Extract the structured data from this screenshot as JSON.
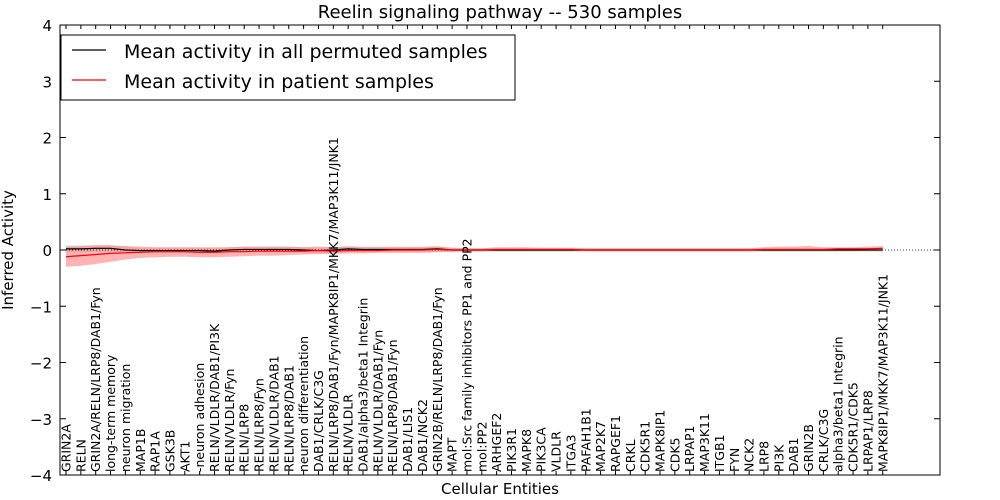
{
  "chart_data": {
    "type": "line",
    "title": "Reelin signaling pathway -- 530 samples",
    "xlabel": "Cellular Entities",
    "ylabel": "Inferred Activity",
    "ylim": [
      -4,
      4
    ],
    "yticks": [
      -4,
      -3,
      -2,
      -1,
      0,
      1,
      2,
      3,
      4
    ],
    "ytick_labels": [
      "−4",
      "−3",
      "−2",
      "−1",
      "0",
      "1",
      "2",
      "3",
      "4"
    ],
    "grid": false,
    "legend_position": "top-left",
    "categories": [
      "GRIN2A",
      "RELN",
      "GRIN2A/RELN/LRP8/DAB1/Fyn",
      "long-term memory",
      "neuron migration",
      "MAP1B",
      "RAP1A",
      "GSK3B",
      "AKT1",
      "-neuron adhesion",
      "RELN/VLDLR/DAB1/PI3K",
      "RELN/VLDLR/Fyn",
      "RELN/LRP8",
      "RELN/LRP8/Fyn",
      "RELN/VLDLR/DAB1",
      "RELN/LRP8/DAB1",
      "neuron differentiation",
      "DAB1/CRLK/C3G",
      "RELN/LRP8/DAB1/Fyn/MAPK8IP1/MKK7/MAP3K11/JNK1",
      "RELN/VLDLR",
      "DAB1/alpha3/beta1 Integrin",
      "RELN/VLDLR/DAB1/Fyn",
      "RELN/LRP8/DAB1/Fyn",
      "DAB1/LIS1",
      "DAB1/NCK2",
      "GRIN2B/RELN/LRP8/DAB1/Fyn",
      "MAPT",
      "mol:Src family inhibitors PP1 and PP2",
      "mol:PP2",
      "ARHGEF2",
      "PIK3R1",
      "MAPK8",
      "PIK3CA",
      "VLDLR",
      "ITGA3",
      "PAFAH1B1",
      "MAP2K7",
      "RAPGEF1",
      "CRKL",
      "CDK5R1",
      "MAPK8IP1",
      "CDK5",
      "LRPAP1",
      "MAP3K11",
      "ITGB1",
      "FYN",
      "NCK2",
      "LRP8",
      "PI3K",
      "DAB1",
      "GRIN2B",
      "CRLK/C3G",
      "alpha3/beta1 Integrin",
      "CDK5R1/CDK5",
      "LRPAP1/LRP8",
      "MAPK8IP1/MKK7/MAP3K11/JNK1"
    ],
    "series": [
      {
        "name": "Mean activity in all permuted samples",
        "color": "#000000",
        "band_color": "#c0c0c0",
        "values": [
          0.02,
          0.02,
          0.03,
          0.03,
          0.0,
          -0.01,
          -0.01,
          -0.01,
          -0.01,
          -0.01,
          -0.02,
          0.0,
          0.01,
          0.01,
          0.01,
          0.01,
          0.0,
          -0.01,
          0.0,
          0.02,
          0.01,
          0.01,
          0.01,
          0.01,
          0.01,
          0.02,
          0.0,
          0.0,
          0.0,
          0.0,
          0.0,
          0.0,
          0.0,
          0.0,
          0.0,
          0.0,
          0.0,
          0.0,
          0.0,
          0.0,
          0.0,
          0.0,
          0.0,
          0.0,
          0.0,
          0.0,
          0.0,
          0.0,
          0.0,
          0.0,
          0.0,
          0.0,
          0.0,
          0.0,
          0.0,
          0.0
        ],
        "lower": [
          -0.04,
          -0.04,
          -0.03,
          -0.03,
          -0.05,
          -0.05,
          -0.06,
          -0.06,
          -0.06,
          -0.06,
          -0.06,
          -0.05,
          -0.04,
          -0.04,
          -0.04,
          -0.04,
          -0.05,
          -0.06,
          -0.05,
          -0.03,
          -0.04,
          -0.04,
          -0.04,
          -0.04,
          -0.04,
          -0.03,
          -0.04,
          -0.03,
          -0.03,
          -0.03,
          -0.03,
          -0.03,
          -0.03,
          -0.03,
          -0.03,
          -0.03,
          -0.03,
          -0.03,
          -0.03,
          -0.03,
          -0.03,
          -0.03,
          -0.03,
          -0.03,
          -0.03,
          -0.03,
          -0.03,
          -0.03,
          -0.03,
          -0.03,
          -0.03,
          -0.03,
          -0.03,
          -0.03,
          -0.03,
          -0.03
        ],
        "upper": [
          0.08,
          0.08,
          0.09,
          0.09,
          0.06,
          0.04,
          0.04,
          0.04,
          0.04,
          0.04,
          0.03,
          0.05,
          0.06,
          0.06,
          0.06,
          0.06,
          0.05,
          0.04,
          0.05,
          0.07,
          0.06,
          0.06,
          0.06,
          0.06,
          0.06,
          0.07,
          0.04,
          0.03,
          0.03,
          0.03,
          0.03,
          0.03,
          0.03,
          0.03,
          0.03,
          0.03,
          0.03,
          0.03,
          0.03,
          0.03,
          0.03,
          0.03,
          0.03,
          0.03,
          0.03,
          0.03,
          0.03,
          0.03,
          0.03,
          0.03,
          0.03,
          0.03,
          0.03,
          0.03,
          0.03,
          0.03
        ]
      },
      {
        "name": "Mean activity in patient samples",
        "color": "#ff0000",
        "band_color": "#ff8080",
        "values": [
          -0.12,
          -0.1,
          -0.08,
          -0.06,
          -0.05,
          -0.04,
          -0.03,
          -0.03,
          -0.03,
          -0.04,
          -0.04,
          -0.03,
          -0.03,
          -0.02,
          -0.02,
          -0.02,
          -0.02,
          -0.01,
          -0.02,
          -0.01,
          -0.01,
          -0.01,
          0.0,
          0.0,
          0.0,
          0.01,
          0.0,
          0.0,
          0.0,
          0.01,
          0.01,
          0.01,
          0.01,
          0.01,
          0.01,
          0.0,
          0.0,
          0.0,
          0.0,
          0.0,
          0.0,
          0.0,
          0.0,
          0.0,
          0.0,
          0.0,
          0.0,
          0.01,
          0.01,
          0.01,
          0.01,
          0.01,
          0.02,
          0.02,
          0.02,
          0.03
        ],
        "lower": [
          -0.3,
          -0.28,
          -0.25,
          -0.21,
          -0.17,
          -0.14,
          -0.13,
          -0.12,
          -0.12,
          -0.13,
          -0.13,
          -0.12,
          -0.11,
          -0.1,
          -0.1,
          -0.09,
          -0.08,
          -0.07,
          -0.07,
          -0.06,
          -0.06,
          -0.05,
          -0.05,
          -0.05,
          -0.05,
          -0.04,
          -0.03,
          -0.02,
          -0.02,
          -0.02,
          -0.02,
          -0.02,
          -0.02,
          -0.02,
          -0.02,
          -0.02,
          -0.02,
          -0.02,
          -0.02,
          -0.02,
          -0.02,
          -0.02,
          -0.02,
          -0.02,
          -0.02,
          -0.02,
          -0.02,
          -0.02,
          -0.02,
          -0.02,
          -0.02,
          -0.02,
          -0.02,
          -0.02,
          -0.01,
          -0.01
        ],
        "upper": [
          0.06,
          0.07,
          0.08,
          0.08,
          0.07,
          0.06,
          0.05,
          0.05,
          0.05,
          0.05,
          0.05,
          0.05,
          0.06,
          0.06,
          0.06,
          0.06,
          0.05,
          0.06,
          0.05,
          0.06,
          0.05,
          0.05,
          0.05,
          0.05,
          0.05,
          0.06,
          0.04,
          0.03,
          0.03,
          0.05,
          0.05,
          0.05,
          0.04,
          0.04,
          0.04,
          0.03,
          0.03,
          0.03,
          0.03,
          0.03,
          0.03,
          0.03,
          0.03,
          0.03,
          0.03,
          0.03,
          0.03,
          0.05,
          0.06,
          0.06,
          0.07,
          0.05,
          0.05,
          0.05,
          0.06,
          0.07
        ]
      }
    ]
  }
}
